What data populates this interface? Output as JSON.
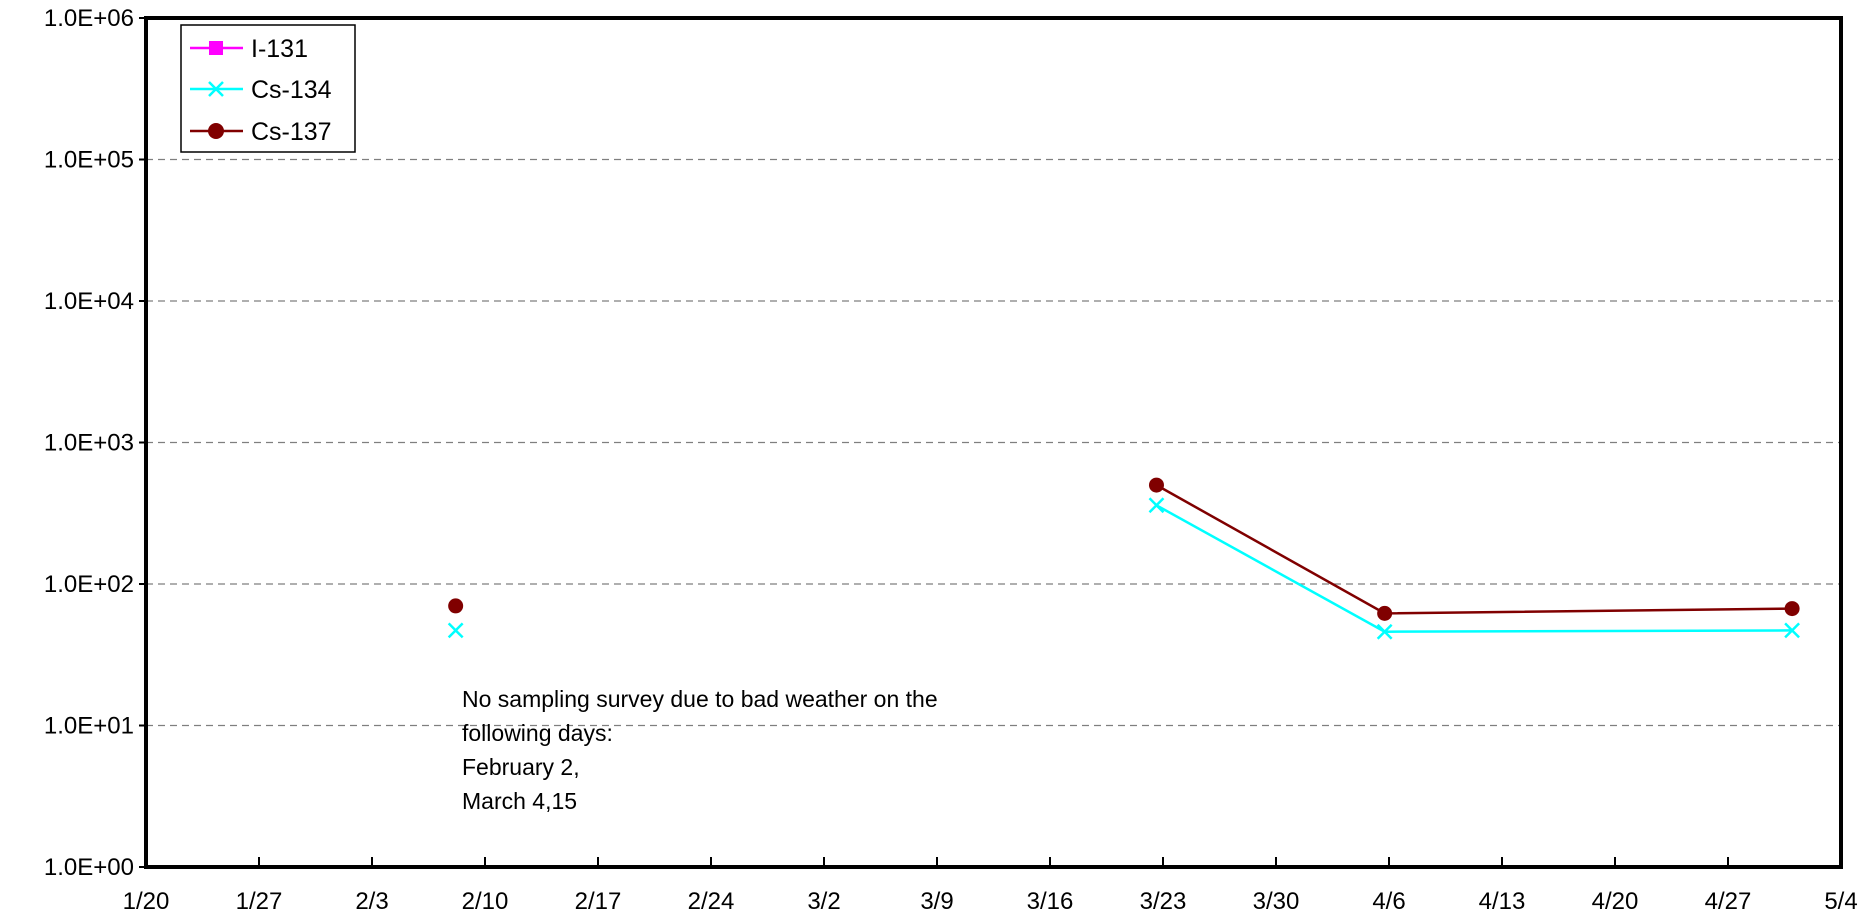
{
  "chart_data": {
    "type": "line",
    "title": "",
    "xlabel": "",
    "ylabel": "",
    "x_axis": {
      "type": "date",
      "range": [
        "2011-01-20",
        "2011-05-04"
      ],
      "tick_labels": [
        "1/20",
        "1/27",
        "2/3",
        "2/10",
        "2/17",
        "2/24",
        "3/2",
        "3/9",
        "3/16",
        "3/23",
        "3/30",
        "4/6",
        "4/13",
        "4/20",
        "4/27",
        "5/4"
      ]
    },
    "y_axis": {
      "scale": "log",
      "ylim": [
        1,
        1000000
      ],
      "tick_labels": [
        "1.0E+00",
        "1.0E+01",
        "1.0E+02",
        "1.0E+03",
        "1.0E+04",
        "1.0E+05",
        "1.0E+06"
      ]
    },
    "grid": "horizontal dashed",
    "legend_position": "top-left",
    "series": [
      {
        "name": "I-131",
        "color": "#ff00ff",
        "marker": "square",
        "points": []
      },
      {
        "name": "Cs-134",
        "color": "#00ffff",
        "marker": "x",
        "points": [
          {
            "x": "2011-02-08",
            "y": 47
          },
          {
            "x": "2011-03-23",
            "y": 360
          },
          {
            "x": "2011-04-06",
            "y": 46
          },
          {
            "x": "2011-05-01",
            "y": 47
          }
        ],
        "lines": [
          [
            1,
            2,
            3
          ]
        ]
      },
      {
        "name": "Cs-137",
        "color": "#800000",
        "marker": "circle",
        "points": [
          {
            "x": "2011-02-08",
            "y": 70
          },
          {
            "x": "2011-03-23",
            "y": 500
          },
          {
            "x": "2011-04-06",
            "y": 62
          },
          {
            "x": "2011-05-01",
            "y": 67
          }
        ],
        "lines": [
          [
            1,
            2,
            3
          ]
        ]
      }
    ],
    "annotation": {
      "lines": [
        "No sampling survey due to bad weather on the",
        "following days:",
        "February 2,",
        "March 4,15"
      ]
    }
  }
}
